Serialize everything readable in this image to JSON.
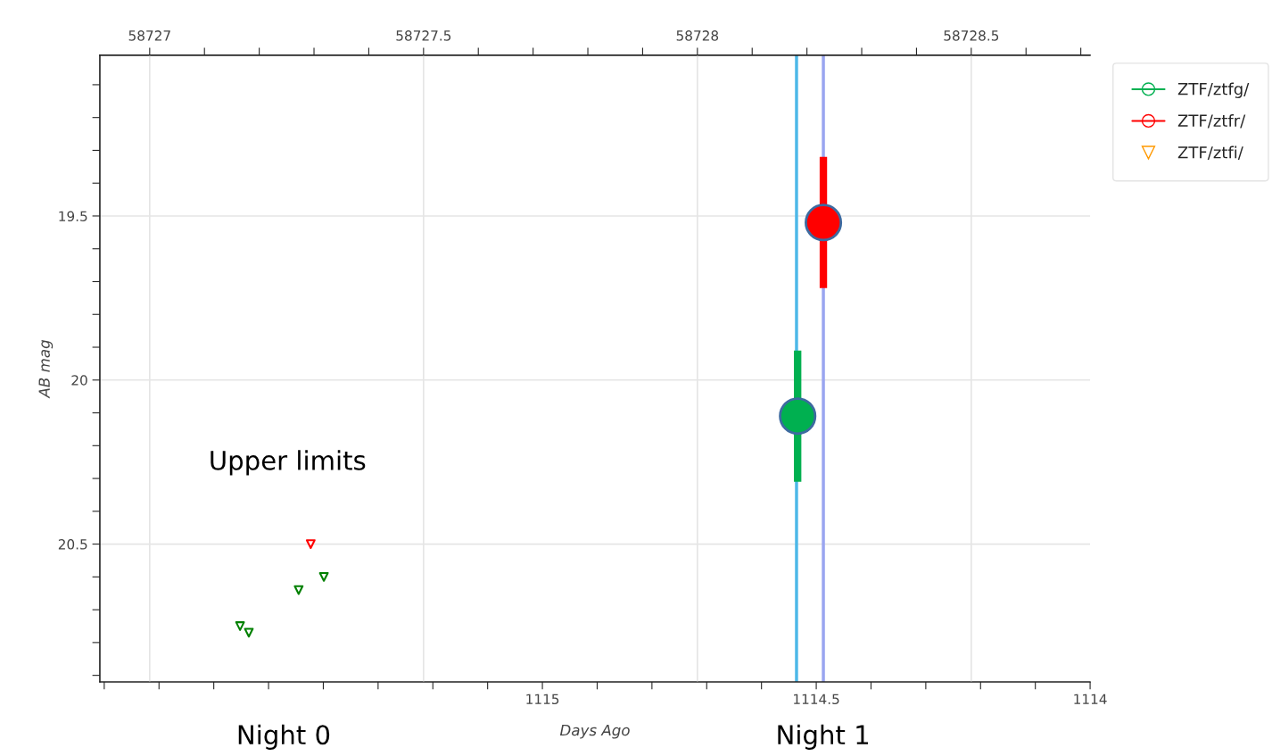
{
  "chart_data": {
    "type": "scatter",
    "xlabel": "Days Ago",
    "ylabel": "AB mag",
    "xlim": [
      1115.808,
      1114
    ],
    "xticks": [
      {
        "value": 1115.8,
        "label": null
      },
      {
        "value": 1115.7,
        "label": null
      },
      {
        "value": 1115.6,
        "label": null
      },
      {
        "value": 1115.5,
        "label": null
      },
      {
        "value": 1115.4,
        "label": null
      },
      {
        "value": 1115.3,
        "label": null
      },
      {
        "value": 1115.2,
        "label": null
      },
      {
        "value": 1115.1,
        "label": null
      },
      1115,
      {
        "value": 1114.9,
        "label": null
      },
      {
        "value": 1114.8,
        "label": null
      },
      {
        "value": 1114.7,
        "label": null
      },
      {
        "value": 1114.6,
        "label": null
      },
      1114.5,
      {
        "value": 1114.4,
        "label": null
      },
      {
        "value": 1114.3,
        "label": null
      },
      {
        "value": 1114.2,
        "label": null
      },
      {
        "value": 1114.1,
        "label": null
      },
      1114
    ],
    "x2lim": [
      58726.909,
      58728.717
    ],
    "x2ticks": [
      58727,
      {
        "value": 58727.1,
        "label": null
      },
      {
        "value": 58727.2,
        "label": null
      },
      {
        "value": 58727.3,
        "label": null
      },
      {
        "value": 58727.4,
        "label": null
      },
      58727.5,
      {
        "value": 58727.6,
        "label": null
      },
      {
        "value": 58727.7,
        "label": null
      },
      {
        "value": 58727.8,
        "label": null
      },
      {
        "value": 58727.9,
        "label": null
      },
      58728,
      {
        "value": 58728.1,
        "label": null
      },
      {
        "value": 58728.2,
        "label": null
      },
      {
        "value": 58728.3,
        "label": null
      },
      {
        "value": 58728.4,
        "label": null
      },
      58728.5,
      {
        "value": 58728.6,
        "label": null
      },
      {
        "value": 58728.7,
        "label": null
      }
    ],
    "ylim": [
      20.92,
      19.01
    ],
    "yticks": [
      {
        "value": 19.1,
        "label": null
      },
      {
        "value": 19.2,
        "label": null
      },
      {
        "value": 19.3,
        "label": null
      },
      {
        "value": 19.4,
        "label": null
      },
      19.5,
      {
        "value": 19.6,
        "label": null
      },
      {
        "value": 19.7,
        "label": null
      },
      {
        "value": 19.8,
        "label": null
      },
      {
        "value": 19.9,
        "label": null
      },
      20,
      {
        "value": 20.1,
        "label": null
      },
      {
        "value": 20.2,
        "label": null
      },
      {
        "value": 20.3,
        "label": null
      },
      {
        "value": 20.4,
        "label": null
      },
      20.5,
      {
        "value": 20.6,
        "label": null
      },
      {
        "value": 20.7,
        "label": null
      },
      {
        "value": 20.8,
        "label": null
      },
      {
        "value": 20.9,
        "label": null
      }
    ],
    "grid": true,
    "legend": "right",
    "series": [
      {
        "name": "ZTF/ztfg/",
        "color": "#00b050",
        "marker": "circle",
        "x": [
          1114.534
        ],
        "values": [
          20.11
        ],
        "errors": [
          0.2
        ]
      },
      {
        "name": "ZTF/ztfr/",
        "color": "#ff0000",
        "marker": "circle",
        "x": [
          1114.487
        ],
        "values": [
          19.52
        ],
        "errors": [
          0.2
        ]
      },
      {
        "name": "ZTF/ztfi/",
        "color": "#ff9900",
        "marker": "triangle"
      },
      {
        "color": "#008000",
        "marker": "triangle",
        "x": [
          1115.552,
          1115.536,
          1115.445,
          1115.399
        ],
        "values": [
          20.75,
          20.77,
          20.64,
          20.6
        ]
      },
      {
        "color": "#ff0000",
        "marker": "triangle",
        "x": [
          1115.423
        ],
        "values": [
          20.5
        ]
      }
    ],
    "ref_lines": [
      {
        "axis": "x",
        "value": 1114.536,
        "color": "#4db8e8"
      },
      {
        "axis": "x",
        "value": 1114.487,
        "color": "#9aa5f0"
      }
    ],
    "annotations": [
      "Upper limits",
      "Night 0",
      "Night 1"
    ]
  }
}
